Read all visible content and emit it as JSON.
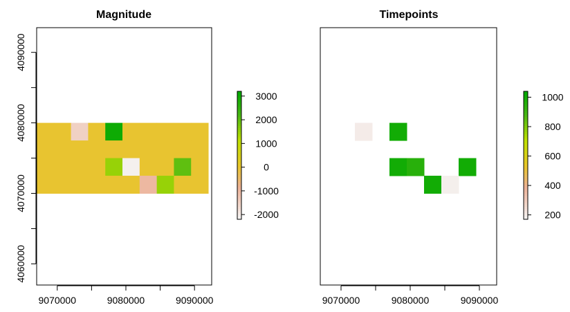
{
  "chart_data": [
    {
      "type": "heatmap",
      "title": "Magnitude",
      "xlabel": "",
      "ylabel": "",
      "x_ticks": [
        "9070000",
        "9080000",
        "9090000"
      ],
      "y_ticks": [
        "4060000",
        "4070000",
        "4080000",
        "4090000"
      ],
      "xlim": [
        9067000,
        9092500
      ],
      "ylim": [
        4057000,
        4093500
      ],
      "grid": false,
      "cell_size": 2500,
      "cells": [
        {
          "x": 9067000,
          "y": 4077500,
          "value": 0
        },
        {
          "x": 9069500,
          "y": 4077500,
          "value": 0
        },
        {
          "x": 9072000,
          "y": 4077500,
          "value": -1500
        },
        {
          "x": 9074500,
          "y": 4077500,
          "value": 0
        },
        {
          "x": 9077000,
          "y": 4077500,
          "value": 3000
        },
        {
          "x": 9079500,
          "y": 4077500,
          "value": 0
        },
        {
          "x": 9082000,
          "y": 4077500,
          "value": 0
        },
        {
          "x": 9084500,
          "y": 4077500,
          "value": 0
        },
        {
          "x": 9087000,
          "y": 4077500,
          "value": 0
        },
        {
          "x": 9089500,
          "y": 4077500,
          "value": 0
        },
        {
          "x": 9067000,
          "y": 4075000,
          "value": 0
        },
        {
          "x": 9069500,
          "y": 4075000,
          "value": 0
        },
        {
          "x": 9072000,
          "y": 4075000,
          "value": 0
        },
        {
          "x": 9074500,
          "y": 4075000,
          "value": 0
        },
        {
          "x": 9077000,
          "y": 4075000,
          "value": 0
        },
        {
          "x": 9079500,
          "y": 4075000,
          "value": 0
        },
        {
          "x": 9082000,
          "y": 4075000,
          "value": 0
        },
        {
          "x": 9084500,
          "y": 4075000,
          "value": 0
        },
        {
          "x": 9087000,
          "y": 4075000,
          "value": 0
        },
        {
          "x": 9089500,
          "y": 4075000,
          "value": 0
        },
        {
          "x": 9067000,
          "y": 4072500,
          "value": 0
        },
        {
          "x": 9069500,
          "y": 4072500,
          "value": 0
        },
        {
          "x": 9072000,
          "y": 4072500,
          "value": 0
        },
        {
          "x": 9074500,
          "y": 4072500,
          "value": 0
        },
        {
          "x": 9077000,
          "y": 4072500,
          "value": 1500
        },
        {
          "x": 9079500,
          "y": 4072500,
          "value": -2100
        },
        {
          "x": 9082000,
          "y": 4072500,
          "value": 0
        },
        {
          "x": 9084500,
          "y": 4072500,
          "value": 0
        },
        {
          "x": 9087000,
          "y": 4072500,
          "value": 2000
        },
        {
          "x": 9089500,
          "y": 4072500,
          "value": 0
        },
        {
          "x": 9067000,
          "y": 4070000,
          "value": 0
        },
        {
          "x": 9069500,
          "y": 4070000,
          "value": 0
        },
        {
          "x": 9072000,
          "y": 4070000,
          "value": 0
        },
        {
          "x": 9074500,
          "y": 4070000,
          "value": 0
        },
        {
          "x": 9077000,
          "y": 4070000,
          "value": 0
        },
        {
          "x": 9079500,
          "y": 4070000,
          "value": 0
        },
        {
          "x": 9082000,
          "y": 4070000,
          "value": -1000
        },
        {
          "x": 9084500,
          "y": 4070000,
          "value": 1500
        },
        {
          "x": 9087000,
          "y": 4070000,
          "value": 0
        },
        {
          "x": 9089500,
          "y": 4070000,
          "value": 0
        }
      ],
      "legend": {
        "position": "right",
        "range": [
          -2200,
          3200
        ],
        "ticks": [
          "-2000",
          "-1000",
          "0",
          "1000",
          "2000",
          "3000"
        ],
        "tick_values": [
          -2000,
          -1000,
          0,
          1000,
          2000,
          3000
        ]
      }
    },
    {
      "type": "heatmap",
      "title": "Timepoints",
      "xlabel": "",
      "ylabel": "",
      "x_ticks": [
        "9070000",
        "9080000",
        "9090000"
      ],
      "xlim": [
        9067000,
        9092500
      ],
      "ylim": [
        4057000,
        4093500
      ],
      "grid": false,
      "cell_size": 2500,
      "cells": [
        {
          "x": 9072000,
          "y": 4077500,
          "value": 200
        },
        {
          "x": 9077000,
          "y": 4077500,
          "value": 1000
        },
        {
          "x": 9077000,
          "y": 4072500,
          "value": 1000
        },
        {
          "x": 9079500,
          "y": 4072500,
          "value": 950
        },
        {
          "x": 9087000,
          "y": 4072500,
          "value": 1000
        },
        {
          "x": 9082000,
          "y": 4070000,
          "value": 1000
        },
        {
          "x": 9084500,
          "y": 4070000,
          "value": 190
        }
      ],
      "legend": {
        "position": "right",
        "range": [
          170,
          1040
        ],
        "ticks": [
          "200",
          "400",
          "600",
          "800",
          "1000"
        ],
        "tick_values": [
          200,
          400,
          600,
          800,
          1000
        ]
      }
    }
  ]
}
